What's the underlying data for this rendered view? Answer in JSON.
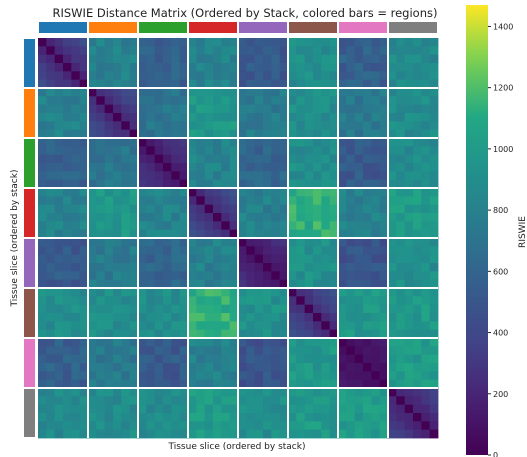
{
  "chart_data": {
    "type": "heatmap",
    "title": "RISWIE Distance Matrix (Ordered by Stack, colored bars = regions)",
    "xlabel": "Tissue slice (ordered by stack)",
    "ylabel": "Tissue slice (ordered by stack)",
    "colorbar": {
      "label": "RISWIE",
      "colormap": "viridis",
      "range": [
        0,
        1470
      ],
      "ticks": [
        0,
        200,
        400,
        600,
        800,
        1000,
        1200,
        1400
      ],
      "tick_labels": [
        "0",
        "200",
        "400",
        "600",
        "800",
        "1000",
        "1200",
        "1400"
      ]
    },
    "grid": false,
    "diagonal_value": 0,
    "slices_per_group": 6,
    "region_colors": [
      "#1f77b4",
      "#ff7f0e",
      "#2ca02c",
      "#d62728",
      "#9467bd",
      "#8c564b",
      "#e377c2",
      "#7f7f7f"
    ],
    "within_group_mean": [
      300,
      320,
      210,
      330,
      180,
      330,
      100,
      260
    ],
    "block_means": [
      [
        300,
        800,
        560,
        820,
        520,
        900,
        560,
        880
      ],
      [
        800,
        320,
        720,
        980,
        760,
        900,
        740,
        880
      ],
      [
        560,
        720,
        210,
        820,
        600,
        900,
        520,
        860
      ],
      [
        820,
        980,
        820,
        330,
        800,
        1120,
        800,
        1000
      ],
      [
        520,
        760,
        600,
        800,
        180,
        920,
        480,
        900
      ],
      [
        900,
        900,
        900,
        1120,
        920,
        330,
        980,
        980
      ],
      [
        560,
        740,
        520,
        800,
        480,
        980,
        100,
        1000
      ],
      [
        880,
        880,
        860,
        1000,
        900,
        980,
        1000,
        260
      ]
    ]
  }
}
